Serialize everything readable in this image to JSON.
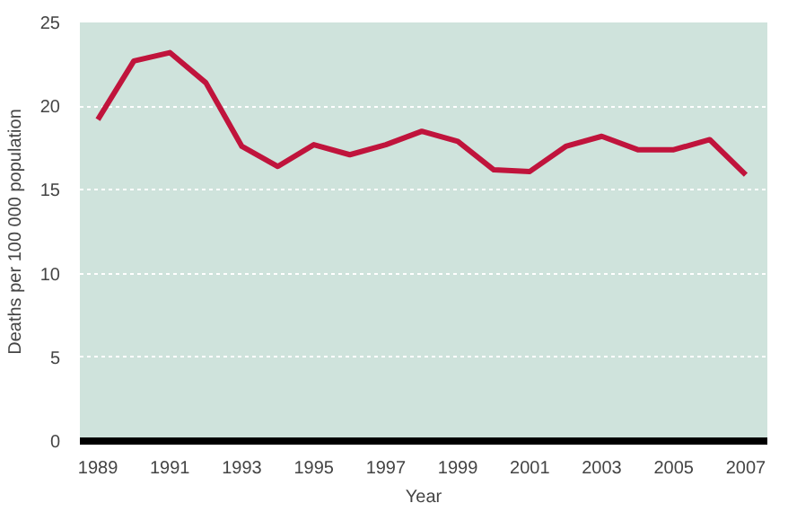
{
  "chart_data": {
    "type": "line",
    "xlabel": "Year",
    "ylabel": "Deaths per 100 000 population",
    "x": [
      1989,
      1990,
      1991,
      1992,
      1993,
      1994,
      1995,
      1996,
      1997,
      1998,
      1999,
      2000,
      2001,
      2002,
      2003,
      2004,
      2005,
      2006,
      2007
    ],
    "series": [
      {
        "color": "#c0143c",
        "values": [
          19.2,
          22.7,
          23.2,
          21.4,
          17.6,
          16.4,
          17.7,
          17.1,
          17.7,
          18.5,
          17.9,
          16.2,
          16.1,
          17.6,
          18.2,
          17.4,
          17.4,
          18.0,
          15.9
        ]
      }
    ],
    "xlim": [
      1988.5,
      2007.6
    ],
    "xticks": [
      1989,
      1991,
      1993,
      1995,
      1997,
      1999,
      2001,
      2003,
      2005,
      2007
    ],
    "ylim": [
      0,
      25
    ],
    "yticks": [
      0,
      5,
      10,
      15,
      20,
      25
    ],
    "grid": "y"
  }
}
